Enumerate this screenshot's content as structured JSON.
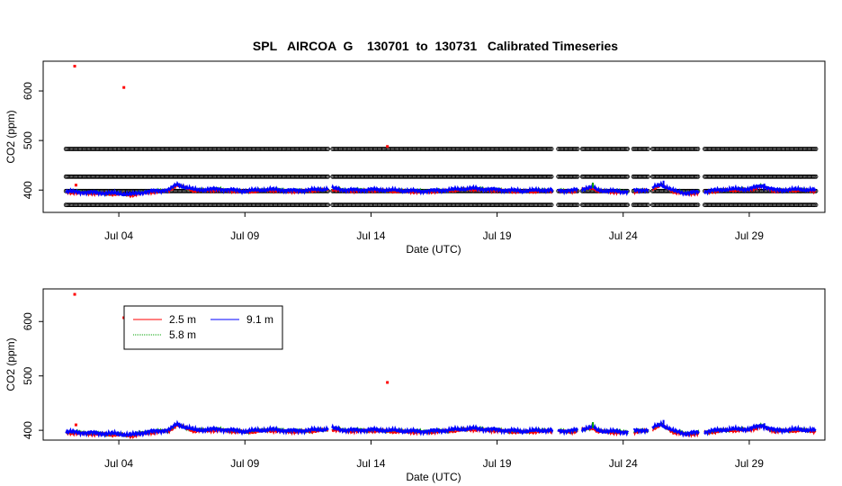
{
  "title": "SPL   AIRCOA  G    130701  to  130731   Calibrated Timeseries",
  "colors": {
    "s25": "#ff0000",
    "s58": "#00a000",
    "s91": "#0000ff",
    "ref": "#000000"
  },
  "chart_data": [
    {
      "type": "scatter",
      "title": "SPL   AIRCOA  G    130701  to  130731   Calibrated Timeseries",
      "xlabel": "Date (UTC)",
      "ylabel": "CO2 (ppm)",
      "x_tick_labels": [
        "Jul 04",
        "Jul 09",
        "Jul 14",
        "Jul 19",
        "Jul 24",
        "Jul 29"
      ],
      "x_tick_days": [
        4,
        9,
        14,
        19,
        24,
        29
      ],
      "y_ticks": [
        400,
        500,
        600
      ],
      "xlim": [
        1,
        32
      ],
      "ylim": [
        355,
        660
      ],
      "reference_gas_levels": [
        370,
        398,
        427,
        483
      ],
      "data_gaps": [
        [
          12.3,
          12.45
        ],
        [
          21.2,
          21.4
        ],
        [
          22.2,
          22.35
        ],
        [
          24.2,
          24.4
        ],
        [
          25.0,
          25.15
        ],
        [
          27.0,
          27.2
        ]
      ],
      "outliers": [
        {
          "x": 2.25,
          "y": 650
        },
        {
          "x": 4.2,
          "y": 607
        },
        {
          "x": 14.65,
          "y": 488
        },
        {
          "x": 2.3,
          "y": 410
        }
      ],
      "series": [
        {
          "name": "2.5 m",
          "color": "#ff0000"
        },
        {
          "name": "5.8 m",
          "color": "#00a000"
        },
        {
          "name": "9.1 m",
          "color": "#0000ff"
        }
      ],
      "baseline": {
        "x": [
          1.9,
          3,
          4,
          4.5,
          5,
          6,
          6.3,
          7,
          8,
          9,
          10,
          11,
          12,
          12.5,
          13,
          14,
          15,
          16,
          17,
          18,
          19,
          20,
          21,
          22,
          22.8,
          23,
          24,
          25,
          25.5,
          26,
          26.5,
          27,
          28,
          29,
          29.5,
          30,
          31,
          32
        ],
        "y": [
          396,
          394,
          392,
          390,
          395,
          400,
          410,
          399,
          401,
          397,
          400,
          398,
          400,
          402,
          399,
          400,
          398,
          397,
          399,
          402,
          400,
          397,
          399,
          398,
          405,
          398,
          396,
          400,
          410,
          397,
          393,
          395,
          400,
          401,
          408,
          399,
          400,
          398
        ]
      },
      "spikes": [
        {
          "x": 6.4,
          "y": 414
        },
        {
          "x": 22.8,
          "y": 415,
          "series": "5.8 m"
        },
        {
          "x": 25.6,
          "y": 419
        },
        {
          "x": 29.6,
          "y": 413
        },
        {
          "x": 12.7,
          "y": 406
        }
      ]
    },
    {
      "type": "line",
      "xlabel": "Date (UTC)",
      "ylabel": "CO2 (ppm)",
      "x_tick_labels": [
        "Jul 04",
        "Jul 09",
        "Jul 14",
        "Jul 19",
        "Jul 24",
        "Jul 29"
      ],
      "x_tick_days": [
        4,
        9,
        14,
        19,
        24,
        29
      ],
      "y_ticks": [
        400,
        500,
        600
      ],
      "xlim": [
        1,
        32
      ],
      "ylim": [
        382,
        660
      ],
      "outliers": [
        {
          "x": 2.25,
          "y": 650
        },
        {
          "x": 4.2,
          "y": 607
        },
        {
          "x": 14.65,
          "y": 488
        },
        {
          "x": 2.3,
          "y": 410
        }
      ],
      "legend": {
        "placement": "top-left",
        "entries": [
          {
            "label": "2.5 m",
            "color": "#ff0000",
            "style": "solid"
          },
          {
            "label": "9.1 m",
            "color": "#0000ff",
            "style": "solid"
          },
          {
            "label": "5.8 m",
            "color": "#00a000",
            "style": "dotted"
          }
        ]
      }
    }
  ]
}
